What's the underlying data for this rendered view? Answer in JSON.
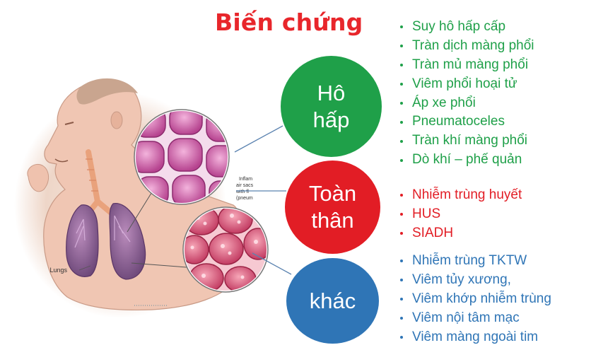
{
  "title": "Biến chứng",
  "illustration_labels": {
    "lungs": "Lungs",
    "alveoli_note": [
      "Inflam",
      "air sacs",
      "with fl",
      "(pneum"
    ]
  },
  "groups": [
    {
      "key": "respiratory",
      "circle_lines": [
        "Hô",
        "hấp"
      ],
      "color": "#1fa049",
      "items": [
        "Suy hô hấp cấp",
        "Tràn dịch màng phổi",
        "Tràn mủ màng phổi",
        "Viêm phổi hoại tử",
        "Áp xe phổi",
        "Pneumatoceles",
        "Tràn khí màng phổi",
        "Dò khí – phế quản"
      ]
    },
    {
      "key": "systemic",
      "circle_lines": [
        "Toàn",
        "thân"
      ],
      "color": "#e21d25",
      "items": [
        "Nhiễm trùng huyết",
        "HUS",
        "SIADH"
      ]
    },
    {
      "key": "other",
      "circle_lines": [
        "khác"
      ],
      "color": "#2f75b6",
      "items": [
        "Nhiễm trùng TKTW",
        "Viêm tủy xương,",
        "Viêm khớp nhiễm trùng",
        "Viêm nội tâm mạc",
        "Viêm màng ngoài tim"
      ]
    }
  ],
  "colors": {
    "title": "#e8262b",
    "green": "#1fa049",
    "red": "#e21d25",
    "blue": "#2f75b6"
  }
}
